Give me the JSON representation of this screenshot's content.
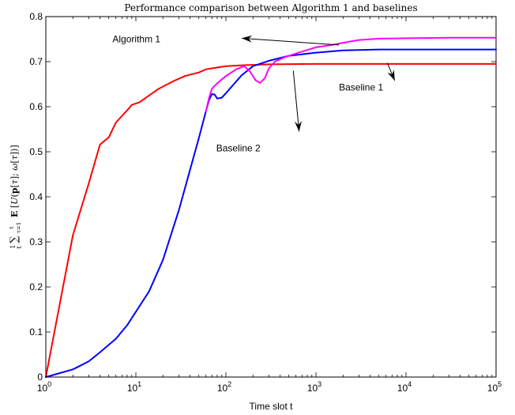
{
  "chart_data": {
    "type": "line",
    "title": "Performance comparison between Algorithm 1 and baselines",
    "xlabel": "Time slot t",
    "ylabel": "1/t ∑_{τ=1}^{t} E[U(p[τ]; ω[τ])]",
    "x_scale": "log",
    "xlim": [
      1,
      100000
    ],
    "ylim": [
      0,
      0.8
    ],
    "x_ticks": [
      {
        "value": 1,
        "base": "10",
        "exp": "0"
      },
      {
        "value": 10,
        "base": "10",
        "exp": "1"
      },
      {
        "value": 100,
        "base": "10",
        "exp": "2"
      },
      {
        "value": 1000,
        "base": "10",
        "exp": "3"
      },
      {
        "value": 10000,
        "base": "10",
        "exp": "4"
      },
      {
        "value": 100000,
        "base": "10",
        "exp": "5"
      }
    ],
    "y_ticks": [
      "0",
      "0.1",
      "0.2",
      "0.3",
      "0.4",
      "0.5",
      "0.6",
      "0.7",
      "0.8"
    ],
    "grid": false,
    "series": [
      {
        "name": "Baseline 2",
        "color": "#ff0000",
        "points": [
          [
            1,
            0
          ],
          [
            2,
            0.315
          ],
          [
            3,
            0.43
          ],
          [
            4,
            0.516
          ],
          [
            5,
            0.532
          ],
          [
            6,
            0.565
          ],
          [
            8,
            0.592
          ],
          [
            9,
            0.604
          ],
          [
            11,
            0.61
          ],
          [
            14,
            0.625
          ],
          [
            18,
            0.64
          ],
          [
            25,
            0.655
          ],
          [
            35,
            0.668
          ],
          [
            50,
            0.676
          ],
          [
            60,
            0.683
          ],
          [
            80,
            0.687
          ],
          [
            100,
            0.69
          ],
          [
            150,
            0.692
          ],
          [
            300,
            0.694
          ],
          [
            1000,
            0.695
          ],
          [
            10000,
            0.695
          ],
          [
            100000,
            0.695
          ]
        ]
      },
      {
        "name": "Baseline 1",
        "color": "#0000ff",
        "points": [
          [
            1,
            0
          ],
          [
            2,
            0.017
          ],
          [
            3,
            0.035
          ],
          [
            4,
            0.055
          ],
          [
            6,
            0.085
          ],
          [
            8,
            0.115
          ],
          [
            10,
            0.145
          ],
          [
            14,
            0.19
          ],
          [
            20,
            0.26
          ],
          [
            30,
            0.37
          ],
          [
            40,
            0.46
          ],
          [
            50,
            0.53
          ],
          [
            60,
            0.59
          ],
          [
            65,
            0.615
          ],
          [
            70,
            0.628
          ],
          [
            75,
            0.627
          ],
          [
            80,
            0.618
          ],
          [
            90,
            0.62
          ],
          [
            100,
            0.63
          ],
          [
            120,
            0.648
          ],
          [
            150,
            0.67
          ],
          [
            200,
            0.69
          ],
          [
            300,
            0.702
          ],
          [
            500,
            0.713
          ],
          [
            1000,
            0.72
          ],
          [
            2000,
            0.725
          ],
          [
            5000,
            0.727
          ],
          [
            10000,
            0.727
          ],
          [
            100000,
            0.727
          ]
        ]
      },
      {
        "name": "Algorithm 1",
        "color": "#ff00ff",
        "points": [
          [
            60,
            0.59
          ],
          [
            65,
            0.62
          ],
          [
            70,
            0.64
          ],
          [
            80,
            0.652
          ],
          [
            100,
            0.668
          ],
          [
            130,
            0.683
          ],
          [
            160,
            0.69
          ],
          [
            185,
            0.678
          ],
          [
            215,
            0.658
          ],
          [
            240,
            0.653
          ],
          [
            270,
            0.663
          ],
          [
            300,
            0.685
          ],
          [
            350,
            0.7
          ],
          [
            450,
            0.71
          ],
          [
            600,
            0.718
          ],
          [
            800,
            0.726
          ],
          [
            1000,
            0.732
          ],
          [
            1500,
            0.737
          ],
          [
            2000,
            0.742
          ],
          [
            3000,
            0.748
          ],
          [
            5000,
            0.751
          ],
          [
            10000,
            0.752
          ],
          [
            30000,
            0.753
          ],
          [
            100000,
            0.753
          ]
        ]
      }
    ],
    "annotations": [
      {
        "text": "Algorithm 1",
        "x": 5.5,
        "y": 0.75,
        "arrow_from": [
          1800,
          0.737
        ],
        "arrow_to": [
          150,
          0.752
        ]
      },
      {
        "text": "Baseline 1",
        "x": 1800,
        "y": 0.643,
        "arrow_from": [
          6200,
          0.697
        ],
        "arrow_to": [
          7500,
          0.658
        ]
      },
      {
        "text": "Baseline 2",
        "x": 78,
        "y": 0.508,
        "arrow_from": [
          560,
          0.68
        ],
        "arrow_to": [
          650,
          0.545
        ]
      }
    ]
  }
}
